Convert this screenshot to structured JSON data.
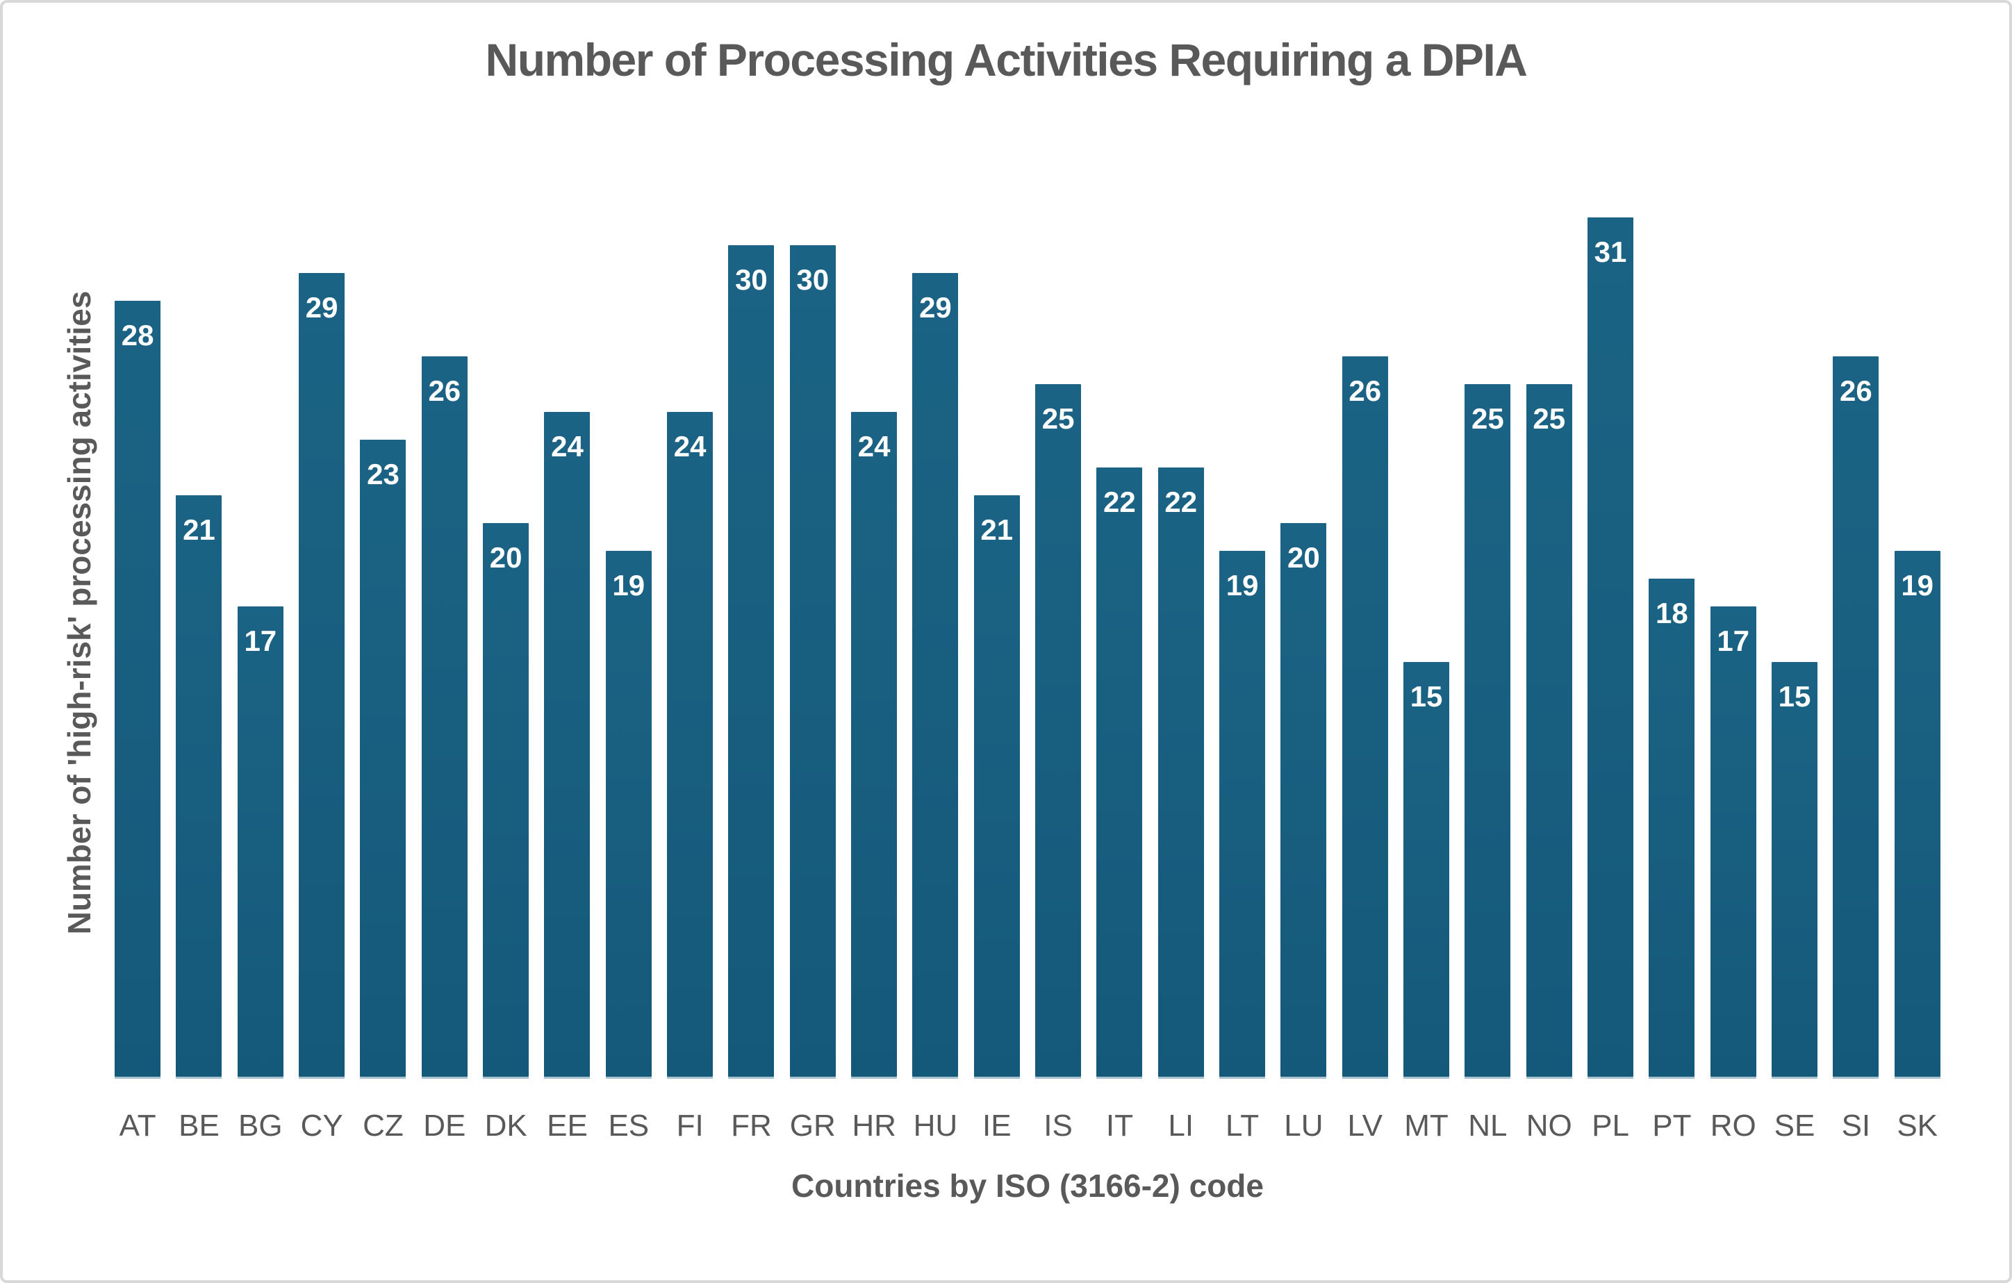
{
  "chart_data": {
    "type": "bar",
    "title": "Number of Processing Activities Requiring a DPIA",
    "xlabel": "Countries by ISO (3166-2) code",
    "ylabel": "Number of 'high-risk' processing activities",
    "categories": [
      "AT",
      "BE",
      "BG",
      "CY",
      "CZ",
      "DE",
      "DK",
      "EE",
      "ES",
      "FI",
      "FR",
      "GR",
      "HR",
      "HU",
      "IE",
      "IS",
      "IT",
      "LI",
      "LT",
      "LU",
      "LV",
      "MT",
      "NL",
      "NO",
      "PL",
      "PT",
      "RO",
      "SE",
      "SI",
      "SK"
    ],
    "values": [
      28,
      21,
      17,
      29,
      23,
      26,
      20,
      24,
      19,
      24,
      30,
      30,
      24,
      29,
      21,
      25,
      22,
      22,
      19,
      20,
      26,
      15,
      25,
      25,
      31,
      18,
      17,
      15,
      26,
      19
    ],
    "ylim": [
      0,
      31
    ],
    "grid": false,
    "legend": "none",
    "data_label_position": "inside-end",
    "colors": {
      "bar_top": "#1b6384",
      "bar_bottom": "#15597a",
      "bar_bottom_edge": "#b8cdd8",
      "value_label_text": "#ffffff",
      "axis_text": "#595959",
      "frame_border": "#d8d8d8",
      "background": "#ffffff"
    }
  }
}
